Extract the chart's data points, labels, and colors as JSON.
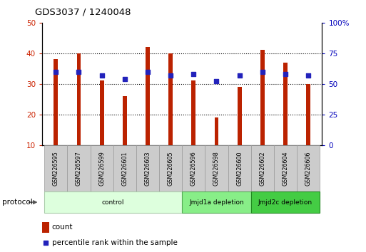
{
  "title": "GDS3037 / 1240048",
  "samples": [
    "GSM226595",
    "GSM226597",
    "GSM226599",
    "GSM226601",
    "GSM226603",
    "GSM226605",
    "GSM226596",
    "GSM226598",
    "GSM226600",
    "GSM226602",
    "GSM226604",
    "GSM226606"
  ],
  "counts": [
    38,
    40,
    31,
    26,
    42,
    40,
    31,
    19,
    29,
    41,
    37,
    30
  ],
  "percentiles": [
    60,
    60,
    57,
    54,
    60,
    57,
    58,
    52,
    57,
    60,
    58,
    57
  ],
  "ylim_left": [
    10,
    50
  ],
  "ylim_right": [
    0,
    100
  ],
  "yticks_left": [
    10,
    20,
    30,
    40,
    50
  ],
  "yticks_right": [
    0,
    25,
    50,
    75,
    100
  ],
  "ytick_labels_right": [
    "0",
    "25",
    "50",
    "75",
    "100%"
  ],
  "bar_color": "#bb2200",
  "dot_color": "#2222bb",
  "bar_width": 0.18,
  "groups": [
    {
      "label": "control",
      "start": 0,
      "end": 6,
      "color": "#ddffdd",
      "edge_color": "#aaccaa"
    },
    {
      "label": "Jmjd1a depletion",
      "start": 6,
      "end": 9,
      "color": "#88ee88",
      "edge_color": "#55aa55"
    },
    {
      "label": "Jmjd2c depletion",
      "start": 9,
      "end": 12,
      "color": "#44cc44",
      "edge_color": "#228822"
    }
  ],
  "legend_count_label": "count",
  "legend_pct_label": "percentile rank within the sample",
  "protocol_label": "protocol",
  "background_color": "#ffffff",
  "plot_bg_color": "#ffffff",
  "grid_color": "#000000",
  "tick_label_color_left": "#cc2200",
  "tick_label_color_right": "#0000bb",
  "sample_box_color": "#cccccc",
  "sample_box_edge": "#999999"
}
